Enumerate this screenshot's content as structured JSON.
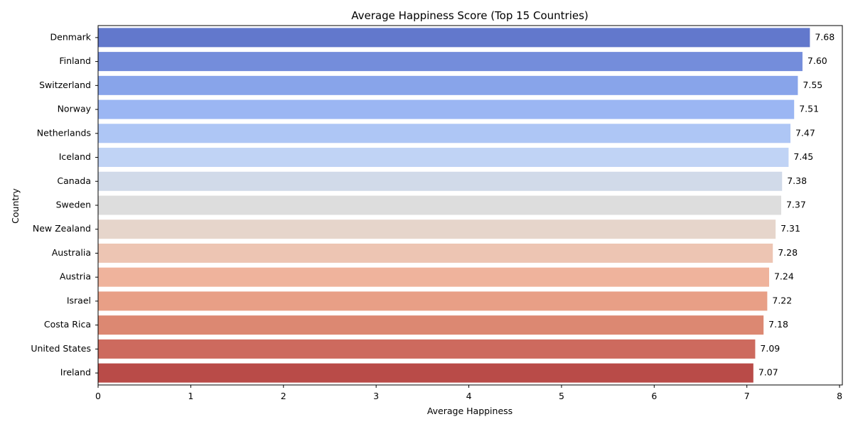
{
  "chart_data": {
    "type": "bar",
    "orientation": "horizontal",
    "title": "Average Happiness Score (Top 15 Countries)",
    "xlabel": "Average Happiness",
    "ylabel": "Country",
    "xlim": [
      0,
      8.03
    ],
    "xticks": [
      0,
      1,
      2,
      3,
      4,
      5,
      6,
      7,
      8
    ],
    "categories": [
      "Denmark",
      "Finland",
      "Switzerland",
      "Norway",
      "Netherlands",
      "Iceland",
      "Canada",
      "Sweden",
      "New Zealand",
      "Australia",
      "Austria",
      "Israel",
      "Costa Rica",
      "United States",
      "Ireland"
    ],
    "values": [
      7.68,
      7.6,
      7.55,
      7.51,
      7.47,
      7.45,
      7.38,
      7.37,
      7.31,
      7.28,
      7.24,
      7.22,
      7.18,
      7.09,
      7.07
    ],
    "value_labels": [
      "7.68",
      "7.60",
      "7.55",
      "7.51",
      "7.47",
      "7.45",
      "7.38",
      "7.37",
      "7.31",
      "7.28",
      "7.24",
      "7.22",
      "7.18",
      "7.09",
      "7.07"
    ],
    "colors": [
      "#6278cc",
      "#748ddb",
      "#88a4ea",
      "#9bb6f3",
      "#aec6f5",
      "#c0d3f5",
      "#d1dae9",
      "#dddddd",
      "#e6d5cb",
      "#edc5b3",
      "#efb39c",
      "#e89f86",
      "#dc8872",
      "#cd6a5e",
      "#b94b48"
    ],
    "grid": false,
    "legend": "none"
  }
}
